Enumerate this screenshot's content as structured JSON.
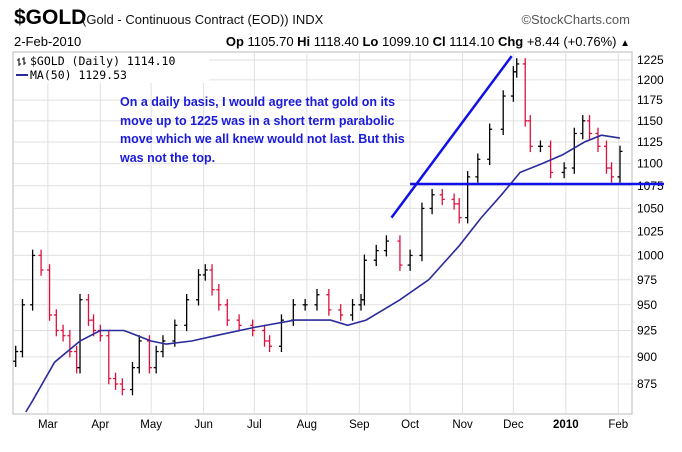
{
  "header": {
    "symbol": "$GOLD",
    "description": "(Gold - Continuous Contract (EOD)) INDX",
    "brand": "©StockCharts.com",
    "date": "2-Feb-2010",
    "op_label": "Op",
    "op": "1105.70",
    "hi_label": "Hi",
    "hi": "1118.40",
    "lo_label": "Lo",
    "lo": "1099.10",
    "cl_label": "Cl",
    "cl": "1114.10",
    "chg_label": "Chg",
    "chg": "+8.44 (+0.76%)",
    "chg_icon": "triangle-up-icon"
  },
  "annotation": "On a daily basis, I would agree that gold on its move up to 1225 was in a short term parabolic move which we all knew would not last. But this was not the top.",
  "chart_data": {
    "type": "ohlc",
    "scale": "log",
    "ylim": [
      875,
      1225
    ],
    "yticks": [
      875,
      900,
      925,
      950,
      975,
      1000,
      1025,
      1050,
      1075,
      1100,
      1125,
      1150,
      1175,
      1200,
      1225
    ],
    "xlim": [
      "2009-02-09",
      "2010-02-02"
    ],
    "xticks": [
      {
        "date": "2009-03-01",
        "label": "Mar"
      },
      {
        "date": "2009-04-01",
        "label": "Apr"
      },
      {
        "date": "2009-05-01",
        "label": "May"
      },
      {
        "date": "2009-06-01",
        "label": "Jun"
      },
      {
        "date": "2009-07-01",
        "label": "Jul"
      },
      {
        "date": "2009-08-01",
        "label": "Aug"
      },
      {
        "date": "2009-09-01",
        "label": "Sep"
      },
      {
        "date": "2009-10-01",
        "label": "Oct"
      },
      {
        "date": "2009-11-01",
        "label": "Nov"
      },
      {
        "date": "2009-12-01",
        "label": "Dec"
      },
      {
        "date": "2010-01-01",
        "label": "2010",
        "bold": true
      },
      {
        "date": "2010-02-01",
        "label": "Feb"
      }
    ],
    "grid": true,
    "legend": [
      {
        "label": "$GOLD (Daily) 1114.10",
        "icon": "ohlc-bar-icon"
      },
      {
        "label": "MA(50) 1129.53",
        "color": "#2b2b9c"
      }
    ],
    "colors": {
      "up": "#000000",
      "down": "#e0103c",
      "ma": "#2b2b9c",
      "trendline": "#1010e8"
    },
    "price": {
      "dates": [
        "2009-02-10",
        "2009-02-14",
        "2009-02-20",
        "2009-02-25",
        "2009-03-02",
        "2009-03-06",
        "2009-03-10",
        "2009-03-14",
        "2009-03-18",
        "2009-03-20",
        "2009-03-25",
        "2009-03-28",
        "2009-04-01",
        "2009-04-06",
        "2009-04-10",
        "2009-04-14",
        "2009-04-20",
        "2009-04-24",
        "2009-04-30",
        "2009-05-04",
        "2009-05-08",
        "2009-05-15",
        "2009-05-22",
        "2009-05-29",
        "2009-06-02",
        "2009-06-06",
        "2009-06-10",
        "2009-06-15",
        "2009-06-22",
        "2009-06-30",
        "2009-07-07",
        "2009-07-10",
        "2009-07-17",
        "2009-07-24",
        "2009-07-31",
        "2009-08-07",
        "2009-08-14",
        "2009-08-21",
        "2009-08-28",
        "2009-09-02",
        "2009-09-04",
        "2009-09-11",
        "2009-09-17",
        "2009-09-25",
        "2009-10-01",
        "2009-10-08",
        "2009-10-14",
        "2009-10-20",
        "2009-10-27",
        "2009-10-30",
        "2009-11-04",
        "2009-11-10",
        "2009-11-17",
        "2009-11-25",
        "2009-12-01",
        "2009-12-03",
        "2009-12-08",
        "2009-12-11",
        "2009-12-17",
        "2009-12-23",
        "2009-12-31",
        "2010-01-06",
        "2010-01-11",
        "2010-01-15",
        "2010-01-20",
        "2010-01-25",
        "2010-01-28",
        "2010-02-02"
      ],
      "close": [
        905,
        950,
        1000,
        985,
        940,
        925,
        920,
        905,
        890,
        955,
        935,
        925,
        920,
        880,
        875,
        870,
        890,
        915,
        890,
        905,
        915,
        930,
        955,
        980,
        985,
        965,
        950,
        935,
        930,
        925,
        915,
        910,
        935,
        950,
        950,
        960,
        945,
        940,
        950,
        955,
        995,
        1005,
        1015,
        990,
        1000,
        1050,
        1065,
        1060,
        1055,
        1040,
        1085,
        1105,
        1140,
        1180,
        1210,
        1220,
        1150,
        1120,
        1120,
        1090,
        1095,
        1135,
        1150,
        1135,
        1120,
        1095,
        1085,
        1114.1
      ]
    },
    "ma50": {
      "dates": [
        "2009-02-20",
        "2009-03-05",
        "2009-03-20",
        "2009-04-01",
        "2009-04-15",
        "2009-05-01",
        "2009-05-10",
        "2009-05-25",
        "2009-06-08",
        "2009-07-01",
        "2009-07-25",
        "2009-08-15",
        "2009-08-25",
        "2009-09-05",
        "2009-09-25",
        "2009-10-12",
        "2009-10-30",
        "2009-11-12",
        "2009-11-24",
        "2009-12-05",
        "2009-12-18",
        "2009-12-30",
        "2010-01-12",
        "2010-01-22",
        "2010-02-02"
      ],
      "values": [
        860,
        895,
        915,
        925,
        925,
        915,
        912,
        915,
        920,
        928,
        935,
        935,
        930,
        935,
        955,
        975,
        1010,
        1040,
        1065,
        1090,
        1100,
        1110,
        1125,
        1133,
        1129.53
      ]
    },
    "trendlines": [
      {
        "from": {
          "date": "2009-09-20",
          "price": 1040
        },
        "to": {
          "date": "2009-11-30",
          "price": 1230
        }
      },
      {
        "from": {
          "date": "2009-10-01",
          "price": 1077
        },
        "to": {
          "date": "2010-02-28",
          "price": 1077
        }
      }
    ]
  }
}
